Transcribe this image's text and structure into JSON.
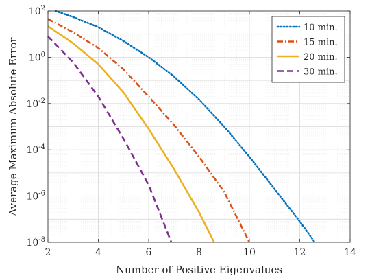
{
  "chart_data": {
    "type": "line",
    "xlabel": "Number of Positive Eigenvalues",
    "ylabel": "Average Maximum Absolute Error",
    "xlim": [
      2,
      14
    ],
    "ylim": [
      1e-08,
      100
    ],
    "yscale": "log",
    "xticks": [
      "2",
      "4",
      "6",
      "8",
      "10",
      "12",
      "14"
    ],
    "yticks": [
      {
        "base": "10",
        "exp": "2"
      },
      {
        "base": "10",
        "exp": "0"
      },
      {
        "base": "10",
        "exp": "-2"
      },
      {
        "base": "10",
        "exp": "-4"
      },
      {
        "base": "10",
        "exp": "-6"
      },
      {
        "base": "10",
        "exp": "-8"
      }
    ],
    "grid": true,
    "legend_position": "top-right",
    "series": [
      {
        "name": "10 min.",
        "color": "#0072BD",
        "style": "dotted",
        "x": [
          2.3,
          3,
          4,
          5,
          6,
          7,
          8,
          9,
          10,
          11,
          12,
          12.6
        ],
        "y": [
          100,
          55,
          20,
          5,
          1,
          0.15,
          0.015,
          0.001,
          5e-05,
          2e-06,
          8e-08,
          1e-08
        ]
      },
      {
        "name": "15 min.",
        "color": "#D95319",
        "style": "dashdot",
        "x": [
          2,
          3,
          4,
          5,
          6,
          7,
          8,
          9,
          10
        ],
        "y": [
          45,
          12,
          2.5,
          0.3,
          0.02,
          0.0012,
          5e-05,
          1.5e-06,
          1e-08
        ]
      },
      {
        "name": "20 min.",
        "color": "#EDB120",
        "style": "solid",
        "x": [
          2,
          3,
          4,
          5,
          6,
          7,
          8,
          8.6
        ],
        "y": [
          22,
          4,
          0.5,
          0.03,
          0.0008,
          1.5e-05,
          2e-07,
          1e-08
        ]
      },
      {
        "name": "30 min.",
        "color": "#7E2F8E",
        "style": "dashed",
        "x": [
          2,
          3,
          4,
          5,
          6,
          6.9
        ],
        "y": [
          8,
          0.6,
          0.02,
          0.0003,
          3e-06,
          1e-08
        ]
      }
    ]
  }
}
